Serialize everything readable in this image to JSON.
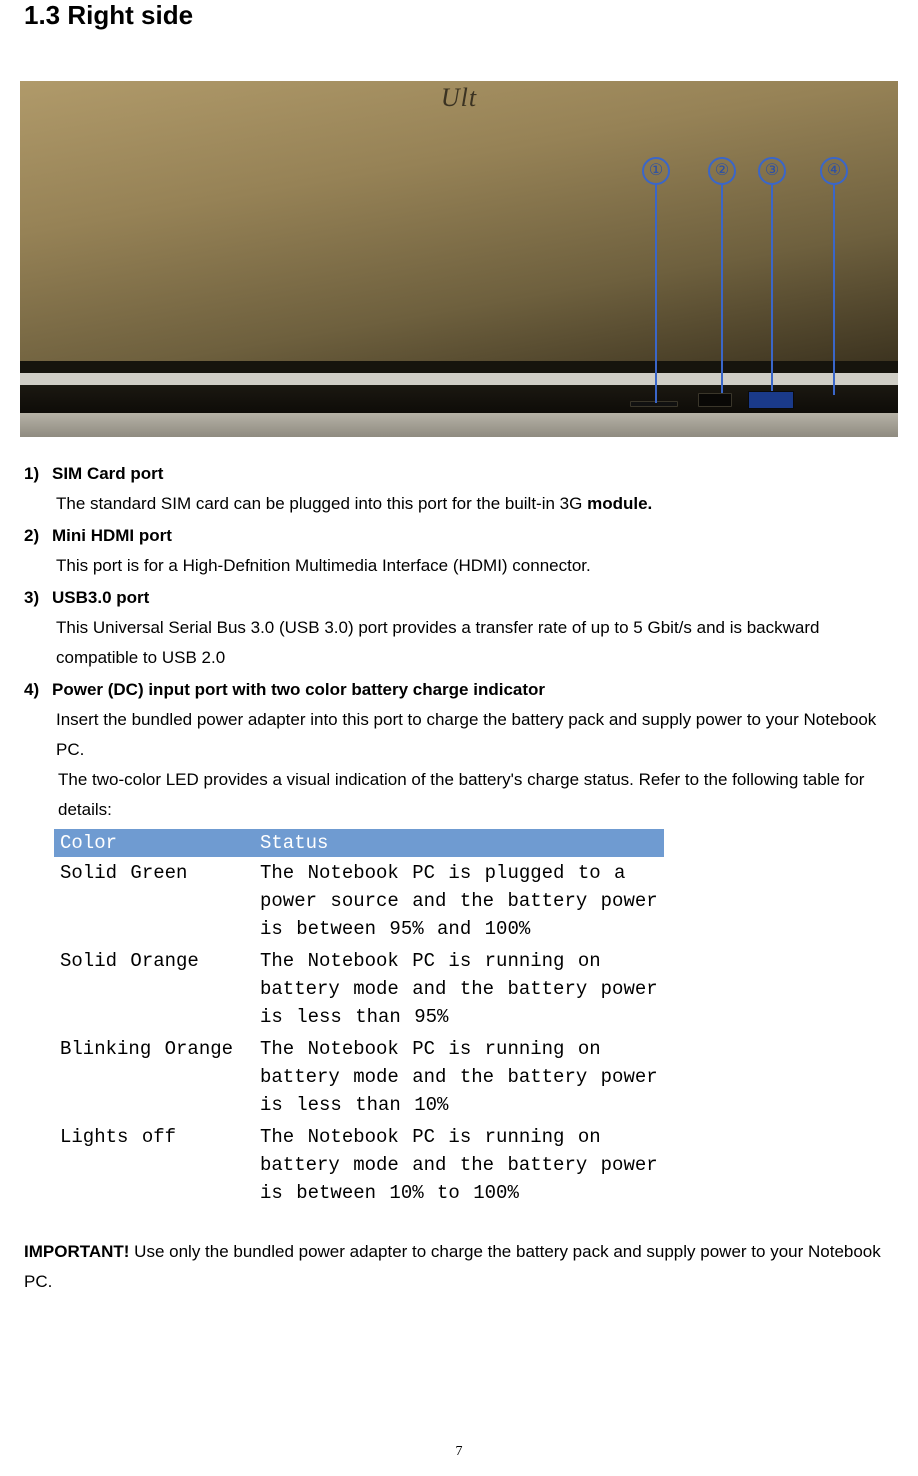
{
  "heading": "1.3  Right side",
  "photo": {
    "brand": "Ult",
    "callouts": [
      {
        "n": "①"
      },
      {
        "n": "②"
      },
      {
        "n": "③"
      },
      {
        "n": "④"
      }
    ]
  },
  "items": [
    {
      "num": "1)",
      "title": "SIM Card port",
      "desc_pre": "The standard SIM card can be plugged into this port for the built-in 3G ",
      "desc_bold": "module.",
      "desc_post": ""
    },
    {
      "num": "2)",
      "title": "Mini HDMI port",
      "desc": "This port is for a High-Defnition Multimedia Interface (HDMI) connector."
    },
    {
      "num": "3)",
      "title": "USB3.0 port",
      "desc": "This Universal Serial Bus 3.0 (USB 3.0) port provides a transfer rate of up to 5 Gbit/s and is backward compatible to USB 2.0"
    },
    {
      "num": "4)",
      "title": "Power (DC) input port with two color battery charge indicator",
      "desc": "Insert the bundled power adapter into this port to charge the battery pack and supply power to your Notebook PC.",
      "subdesc": "The two-color LED provides a visual indication of the battery's charge status. Refer to the following table for details:"
    }
  ],
  "table": {
    "header_bg": "#6f9bd1",
    "header_fg": "#ffffff",
    "columns": [
      "Color",
      "Status"
    ],
    "rows": [
      [
        "Solid Green",
        "The Notebook PC is plugged to a power source and the battery power is between 95% and 100%"
      ],
      [
        "Solid Orange",
        "The Notebook PC is running on battery mode and the battery power is less than 95%"
      ],
      [
        "Blinking Orange",
        "The Notebook PC is running on battery mode and the battery power is less than 10%"
      ],
      [
        "Lights off",
        "The Notebook PC is running on battery mode and the battery power is between 10% to 100%"
      ]
    ]
  },
  "important": {
    "label": "IMPORTANT!",
    "text": " Use only the bundled power adapter to charge the battery pack and supply power to your Notebook PC."
  },
  "page_number": "7"
}
